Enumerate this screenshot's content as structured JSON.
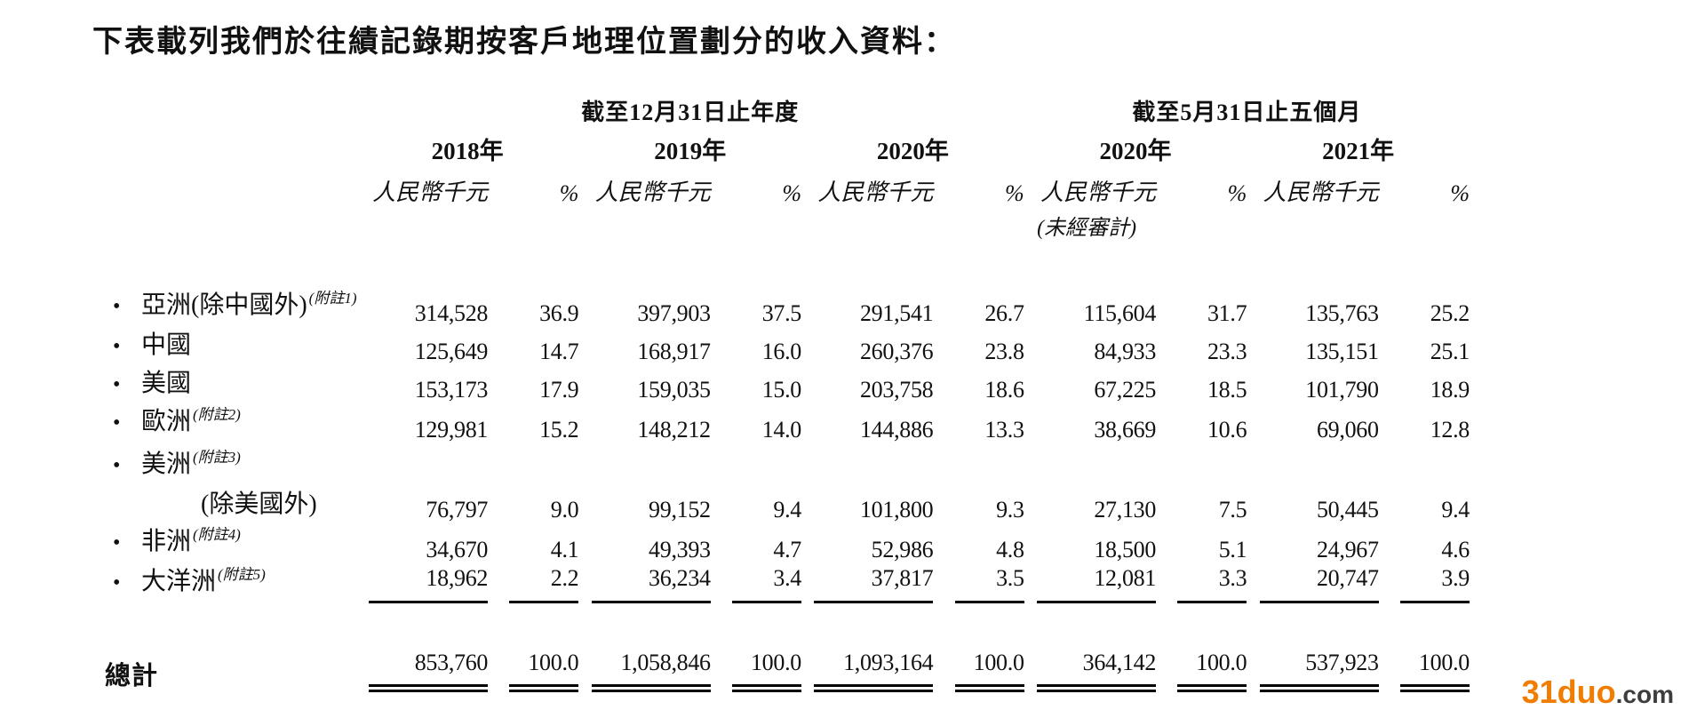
{
  "page": {
    "title": "下表載列我們於往績記錄期按客戶地理位置劃分的收入資料："
  },
  "table": {
    "column_groups": [
      {
        "title": "截至12月31日止年度",
        "years": [
          "2018年",
          "2019年",
          "2020年"
        ]
      },
      {
        "title": "截至5月31日止五個月",
        "years": [
          "2020年",
          "2021年"
        ]
      }
    ],
    "unit_label": "人民幣千元",
    "percent_label": "%",
    "unaudited_label": "(未經審計)",
    "rows": [
      {
        "label": "亞洲(除中國外)",
        "note": "(附註1)",
        "label2": "",
        "values": [
          "314,528",
          "36.9",
          "397,903",
          "37.5",
          "291,541",
          "26.7",
          "115,604",
          "31.7",
          "135,763",
          "25.2"
        ]
      },
      {
        "label": "中國",
        "note": "",
        "label2": "",
        "values": [
          "125,649",
          "14.7",
          "168,917",
          "16.0",
          "260,376",
          "23.8",
          "84,933",
          "23.3",
          "135,151",
          "25.1"
        ]
      },
      {
        "label": "美國",
        "note": "",
        "label2": "",
        "values": [
          "153,173",
          "17.9",
          "159,035",
          "15.0",
          "203,758",
          "18.6",
          "67,225",
          "18.5",
          "101,790",
          "18.9"
        ]
      },
      {
        "label": "歐洲",
        "note": "(附註2)",
        "label2": "",
        "values": [
          "129,981",
          "15.2",
          "148,212",
          "14.0",
          "144,886",
          "13.3",
          "38,669",
          "10.6",
          "69,060",
          "12.8"
        ]
      },
      {
        "label": "美洲",
        "note": "(附註3)",
        "label2": "(除美國外)",
        "values": [
          "76,797",
          "9.0",
          "99,152",
          "9.4",
          "101,800",
          "9.3",
          "27,130",
          "7.5",
          "50,445",
          "9.4"
        ]
      },
      {
        "label": "非洲",
        "note": "(附註4)",
        "label2": "",
        "values": [
          "34,670",
          "4.1",
          "49,393",
          "4.7",
          "52,986",
          "4.8",
          "18,500",
          "5.1",
          "24,967",
          "4.6"
        ]
      },
      {
        "label": "大洋洲",
        "note": "(附註5)",
        "label2": "",
        "underline": true,
        "values": [
          "18,962",
          "2.2",
          "36,234",
          "3.4",
          "37,817",
          "3.5",
          "12,081",
          "3.3",
          "20,747",
          "3.9"
        ]
      }
    ],
    "total": {
      "label": "總計",
      "values": [
        "853,760",
        "100.0",
        "1,058,846",
        "100.0",
        "1,093,164",
        "100.0",
        "364,142",
        "100.0",
        "537,923",
        "100.0"
      ]
    }
  },
  "watermark": {
    "brand": "31duo",
    "suffix": ".com",
    "brand_color": "#F07D00",
    "suffix_color": "#3D3D3D"
  }
}
